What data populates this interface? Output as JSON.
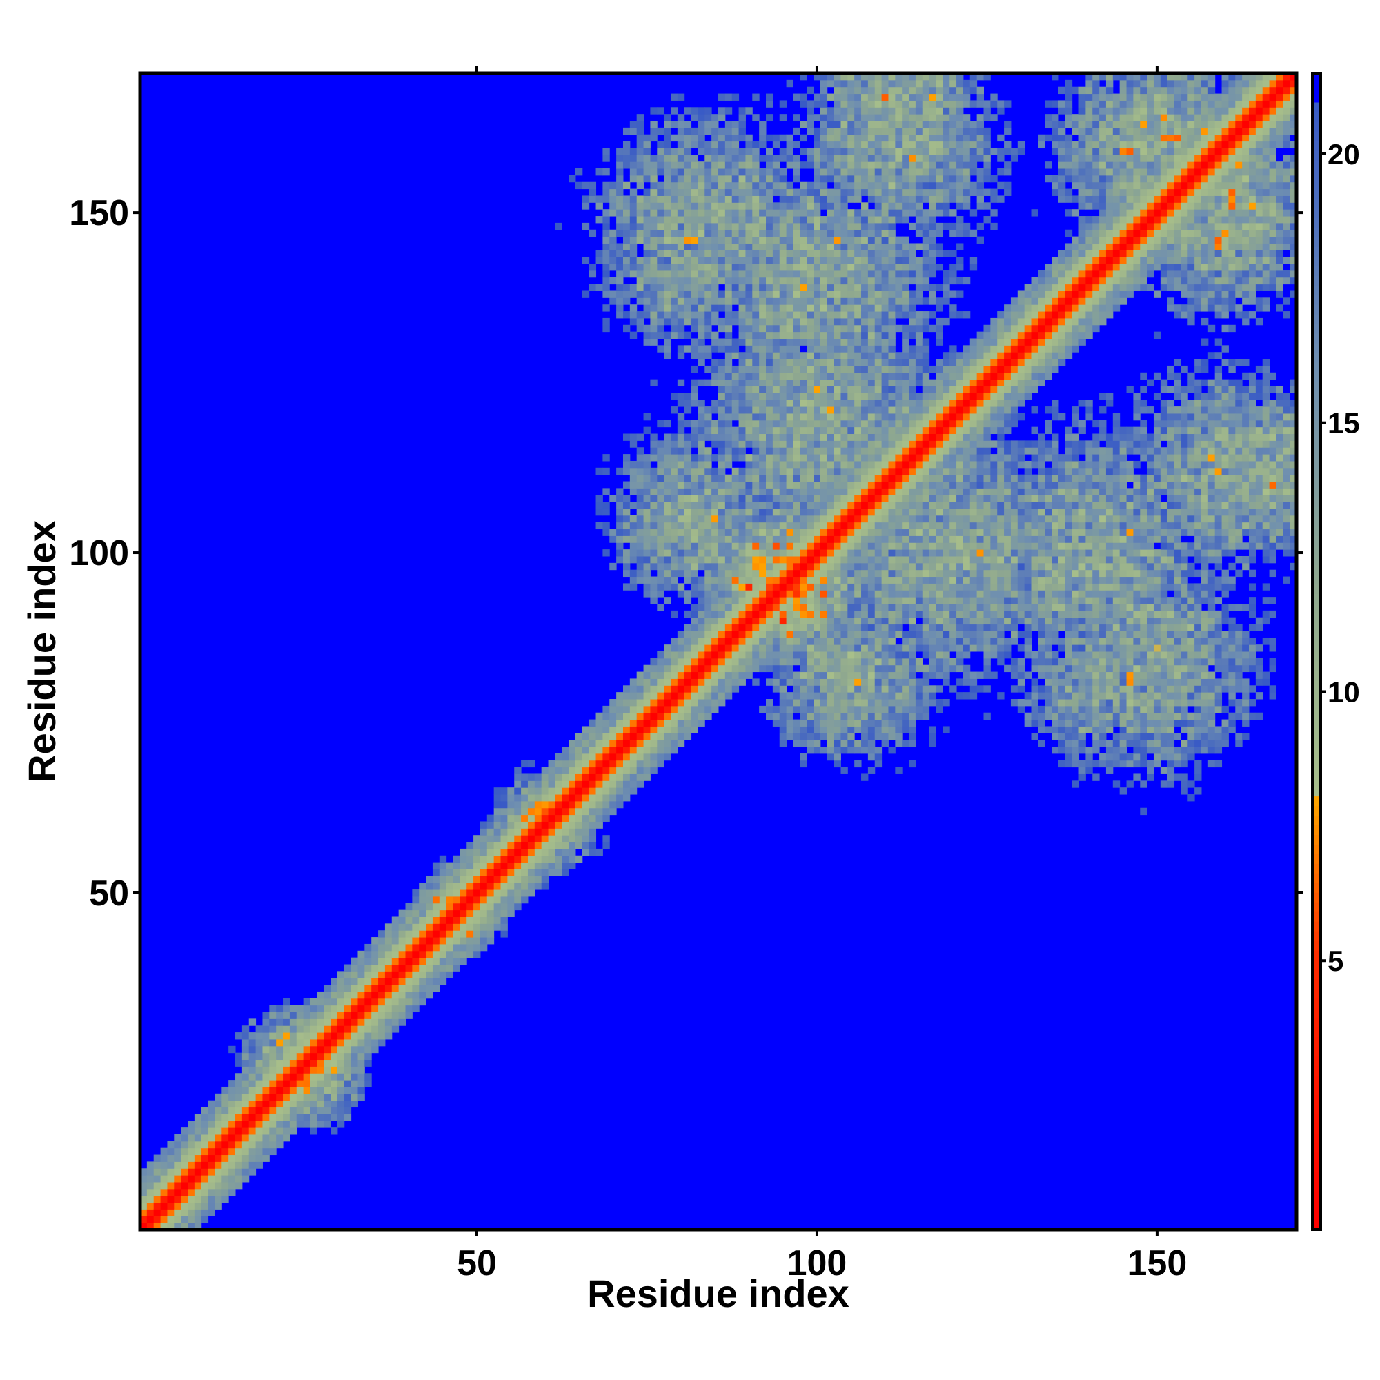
{
  "chart_data": {
    "type": "heatmap",
    "title": "",
    "xlabel": "Residue index",
    "ylabel": "Residue index",
    "n_residues": 170,
    "xlim": [
      1,
      170
    ],
    "ylim": [
      1,
      170
    ],
    "x_ticks": [
      50,
      100,
      150
    ],
    "x_tick_labels": [
      "50",
      "100",
      "150"
    ],
    "y_ticks": [
      50,
      100,
      150
    ],
    "y_tick_labels": [
      "50",
      "100",
      "150"
    ],
    "colorbar": {
      "range": [
        0,
        21.5
      ],
      "ticks": [
        5,
        10,
        15,
        20
      ],
      "tick_labels": [
        "5",
        "10",
        "15",
        "20"
      ],
      "scale": [
        {
          "value": 0,
          "color": "#ff0000"
        },
        {
          "value": 5,
          "color": "#ff2a00"
        },
        {
          "value": 8,
          "color": "#ffa500"
        },
        {
          "value": 8.01,
          "color": "#a8bf8a"
        },
        {
          "value": 12,
          "color": "#8fa88f"
        },
        {
          "value": 16,
          "color": "#6f8fb0"
        },
        {
          "value": 21.5,
          "color": "#3355c8"
        }
      ],
      "above_cutoff_color": "#0000ff",
      "cutoff": 21
    },
    "grid": false,
    "legend": "colorbar-right",
    "description_values": {
      "diagonal_distance": 3.8,
      "contact_clusters": [
        {
          "x": 24,
          "y": 25,
          "spread": 7,
          "value": 9
        },
        {
          "x": 47,
          "y": 48,
          "spread": 5,
          "value": 10
        },
        {
          "x": 60,
          "y": 60,
          "spread": 6,
          "value": 9
        },
        {
          "x": 94,
          "y": 96,
          "spread": 10,
          "value": 9
        },
        {
          "x": 112,
          "y": 168,
          "spread": 12,
          "value": 12
        },
        {
          "x": 84,
          "y": 148,
          "spread": 16,
          "value": 13
        },
        {
          "x": 100,
          "y": 120,
          "spread": 18,
          "value": 13
        },
        {
          "x": 140,
          "y": 100,
          "spread": 18,
          "value": 13
        },
        {
          "x": 160,
          "y": 112,
          "spread": 14,
          "value": 13
        },
        {
          "x": 150,
          "y": 160,
          "spread": 14,
          "value": 12
        },
        {
          "x": 105,
          "y": 82,
          "spread": 12,
          "value": 13
        },
        {
          "x": 140,
          "y": 80,
          "spread": 10,
          "value": 14
        }
      ]
    }
  }
}
